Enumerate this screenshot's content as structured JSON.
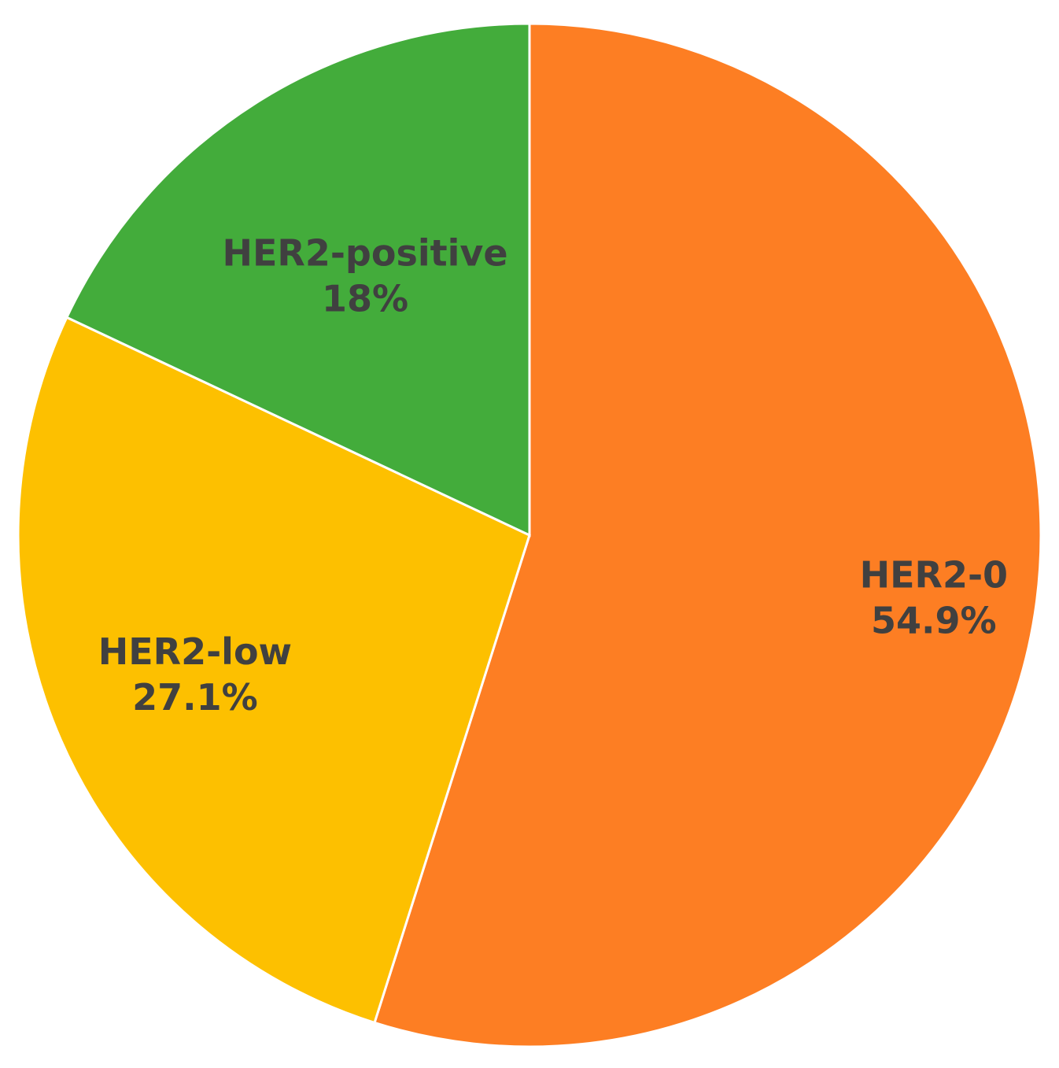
{
  "chart_data": {
    "type": "pie",
    "start_angle_deg": 0,
    "direction": "clockwise",
    "slices": [
      {
        "label": "HER2-0",
        "value_label": "54.9%",
        "value": 54.9,
        "color": "#FD7E23"
      },
      {
        "label": "HER2-low",
        "value_label": "27.1%",
        "value": 27.1,
        "color": "#FDC000"
      },
      {
        "label": "HER2-positive",
        "value_label": "18%",
        "value": 18.0,
        "color": "#43AC3B"
      }
    ],
    "legend": "none",
    "data_labels": "inside slices"
  }
}
